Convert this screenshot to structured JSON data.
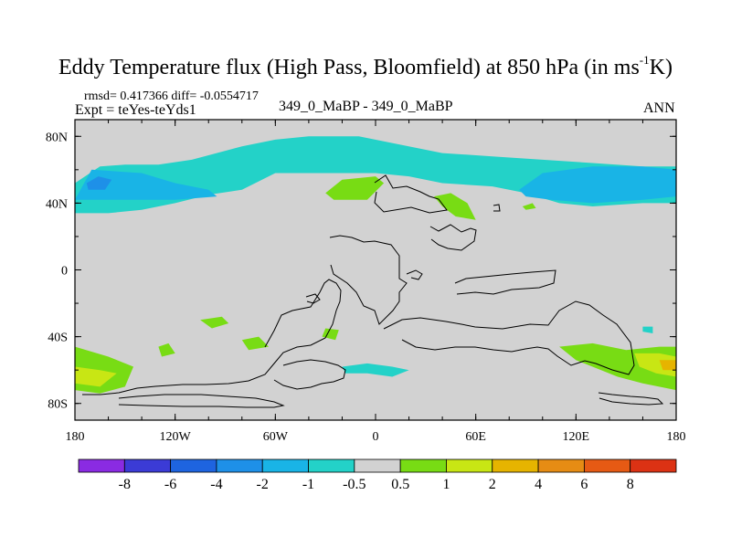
{
  "title": {
    "main": "Eddy Temperature flux (High Pass, Bloomfield) at 850 hPa (in ms",
    "superscript": "-1",
    "tail": "K)"
  },
  "stats": {
    "rmsd_label": "rmsd=",
    "rmsd": "0.417366",
    "diff_label": "diff=",
    "diff": "-0.0554717"
  },
  "experiment": "Expt = teYes-teYds1",
  "case_label": "349_0_MaBP - 349_0_MaBP",
  "season": "ANN",
  "chart_data": {
    "type": "heatmap",
    "title": "Eddy Temperature flux (High Pass, Bloomfield) at 850 hPa (in ms-1K)",
    "xlim": [
      -180,
      180
    ],
    "ylim": [
      -90,
      90
    ],
    "x_ticks": [
      {
        "value": -180,
        "label": "180"
      },
      {
        "value": -120,
        "label": "120W"
      },
      {
        "value": -60,
        "label": "60W"
      },
      {
        "value": 0,
        "label": "0"
      },
      {
        "value": 60,
        "label": "60E"
      },
      {
        "value": 120,
        "label": "120E"
      },
      {
        "value": 180,
        "label": "180"
      }
    ],
    "y_ticks": [
      {
        "value": 80,
        "label": "80N"
      },
      {
        "value": 40,
        "label": "40N"
      },
      {
        "value": 0,
        "label": "0"
      },
      {
        "value": -40,
        "label": "40S"
      },
      {
        "value": -80,
        "label": "80S"
      }
    ],
    "colorbar": {
      "levels": [
        "-8",
        "-6",
        "-4",
        "-2",
        "-1",
        "-0.5",
        "0.5",
        "1",
        "2",
        "4",
        "6",
        "8"
      ],
      "colors": [
        "#8a2be2",
        "#3b3bd6",
        "#1e64e0",
        "#1e90e8",
        "#19b4e6",
        "#23d2c8",
        "#d2d2d2",
        "#78dc14",
        "#c8e614",
        "#e6b400",
        "#e68c14",
        "#e65a14",
        "#dc3214"
      ]
    },
    "regions": [
      {
        "level": "-1 to -0.5",
        "color": "#23d2c8",
        "points": [
          [
            -180,
            52
          ],
          [
            -165,
            62
          ],
          [
            -150,
            63
          ],
          [
            -130,
            63
          ],
          [
            -110,
            66
          ],
          [
            -80,
            74
          ],
          [
            -60,
            78
          ],
          [
            -40,
            80
          ],
          [
            -10,
            80
          ],
          [
            10,
            76
          ],
          [
            40,
            70
          ],
          [
            70,
            68
          ],
          [
            100,
            66
          ],
          [
            130,
            64
          ],
          [
            160,
            62
          ],
          [
            180,
            62
          ],
          [
            180,
            40
          ],
          [
            160,
            40
          ],
          [
            130,
            38
          ],
          [
            110,
            40
          ],
          [
            90,
            46
          ],
          [
            70,
            50
          ],
          [
            40,
            52
          ],
          [
            20,
            56
          ],
          [
            0,
            58
          ],
          [
            -30,
            58
          ],
          [
            -60,
            58
          ],
          [
            -80,
            48
          ],
          [
            -100,
            45
          ],
          [
            -120,
            40
          ],
          [
            -140,
            36
          ],
          [
            -160,
            34
          ],
          [
            -180,
            34
          ]
        ]
      },
      {
        "level": "-2 to -1",
        "color": "#19b4e6",
        "points": [
          [
            -180,
            42
          ],
          [
            -170,
            60
          ],
          [
            -140,
            58
          ],
          [
            -120,
            52
          ],
          [
            -100,
            48
          ],
          [
            -95,
            44
          ],
          [
            -120,
            42
          ],
          [
            -150,
            42
          ],
          [
            -170,
            42
          ]
        ]
      },
      {
        "level": "-2 to -1",
        "color": "#19b4e6",
        "points": [
          [
            86,
            48
          ],
          [
            100,
            58
          ],
          [
            130,
            62
          ],
          [
            160,
            62
          ],
          [
            180,
            60
          ],
          [
            180,
            44
          ],
          [
            160,
            42
          ],
          [
            130,
            40
          ],
          [
            105,
            42
          ],
          [
            90,
            44
          ]
        ]
      },
      {
        "level": "-4 to -2",
        "color": "#1e90e8",
        "points": [
          [
            -173,
            52
          ],
          [
            -166,
            56
          ],
          [
            -158,
            54
          ],
          [
            -162,
            48
          ],
          [
            -172,
            48
          ]
        ]
      },
      {
        "level": "0.5 to 1",
        "color": "#78dc14",
        "points": [
          [
            -30,
            46
          ],
          [
            -20,
            54
          ],
          [
            0,
            56
          ],
          [
            5,
            52
          ],
          [
            -5,
            42
          ],
          [
            -25,
            42
          ]
        ]
      },
      {
        "level": "0.5 to 1",
        "color": "#78dc14",
        "points": [
          [
            35,
            44
          ],
          [
            45,
            46
          ],
          [
            55,
            40
          ],
          [
            60,
            30
          ],
          [
            48,
            32
          ],
          [
            40,
            38
          ]
        ]
      },
      {
        "level": "0.5 to 1",
        "color": "#78dc14",
        "points": [
          [
            88,
            38
          ],
          [
            94,
            40
          ],
          [
            96,
            37
          ],
          [
            90,
            36
          ]
        ]
      },
      {
        "level": "0.5 to 1",
        "color": "#78dc14",
        "points": [
          [
            -180,
            -46
          ],
          [
            -160,
            -52
          ],
          [
            -145,
            -58
          ],
          [
            -150,
            -70
          ],
          [
            -165,
            -74
          ],
          [
            -180,
            -72
          ]
        ]
      },
      {
        "level": "1 to 2",
        "color": "#c8e614",
        "points": [
          [
            -180,
            -58
          ],
          [
            -165,
            -60
          ],
          [
            -155,
            -62
          ],
          [
            -165,
            -70
          ],
          [
            -180,
            -68
          ]
        ]
      },
      {
        "level": "0.5 to 1",
        "color": "#78dc14",
        "points": [
          [
            -130,
            -46
          ],
          [
            -124,
            -44
          ],
          [
            -120,
            -50
          ],
          [
            -128,
            -52
          ]
        ]
      },
      {
        "level": "0.5 to 1",
        "color": "#78dc14",
        "points": [
          [
            -105,
            -30
          ],
          [
            -92,
            -28
          ],
          [
            -88,
            -32
          ],
          [
            -98,
            -35
          ]
        ]
      },
      {
        "level": "0.5 to 1",
        "color": "#78dc14",
        "points": [
          [
            -30,
            -35
          ],
          [
            -22,
            -36
          ],
          [
            -24,
            -42
          ],
          [
            -32,
            -40
          ]
        ]
      },
      {
        "level": "0.5 to 1",
        "color": "#78dc14",
        "points": [
          [
            -80,
            -42
          ],
          [
            -70,
            -40
          ],
          [
            -64,
            -46
          ],
          [
            -76,
            -48
          ]
        ]
      },
      {
        "level": "-1 to -0.5",
        "color": "#23d2c8",
        "points": [
          [
            -20,
            -58
          ],
          [
            -5,
            -56
          ],
          [
            10,
            -58
          ],
          [
            20,
            -60
          ],
          [
            10,
            -64
          ],
          [
            -5,
            -62
          ],
          [
            -18,
            -62
          ]
        ]
      },
      {
        "level": "0.5 to 1",
        "color": "#78dc14",
        "points": [
          [
            110,
            -46
          ],
          [
            130,
            -44
          ],
          [
            150,
            -48
          ],
          [
            170,
            -46
          ],
          [
            180,
            -46
          ],
          [
            180,
            -72
          ],
          [
            160,
            -68
          ],
          [
            145,
            -64
          ],
          [
            120,
            -54
          ]
        ]
      },
      {
        "level": "1 to 2",
        "color": "#c8e614",
        "points": [
          [
            155,
            -50
          ],
          [
            170,
            -50
          ],
          [
            180,
            -52
          ],
          [
            180,
            -64
          ],
          [
            168,
            -62
          ],
          [
            158,
            -58
          ]
        ]
      },
      {
        "level": "2 to 4",
        "color": "#e6b400",
        "points": [
          [
            170,
            -54
          ],
          [
            180,
            -54
          ],
          [
            180,
            -60
          ],
          [
            172,
            -60
          ]
        ]
      },
      {
        "level": "-1 to -0.5",
        "color": "#23d2c8",
        "points": [
          [
            160,
            -34
          ],
          [
            166,
            -34
          ],
          [
            166,
            -38
          ],
          [
            160,
            -37
          ]
        ]
      }
    ]
  }
}
